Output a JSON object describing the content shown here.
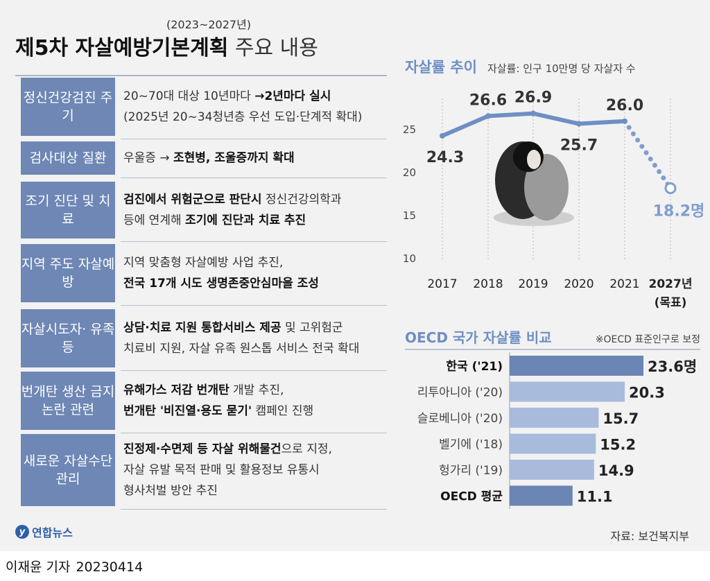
{
  "header": {
    "subtitle": "(2023~2027년)",
    "title_bold": "제5차 자살예방기본계획",
    "title_light": "주요 내용"
  },
  "plan_items": [
    {
      "label": "정신건강검진 주기",
      "desc": [
        [
          {
            "t": "20~70대 대상 10년마다 ",
            "b": false
          },
          {
            "t": "→2년마다 실시",
            "b": true
          }
        ],
        [
          {
            "t": "(2025년 20~34청년층 우선 도입·단계적 확대)",
            "b": false
          }
        ]
      ]
    },
    {
      "label": "검사대상 질환",
      "desc": [
        [
          {
            "t": "우울증 → ",
            "b": false
          },
          {
            "t": "조현병, 조울증까지 확대",
            "b": true
          }
        ]
      ]
    },
    {
      "label": "조기 진단 및 치료",
      "desc": [
        [
          {
            "t": "검진에서 위험군으로 판단시",
            "b": true
          },
          {
            "t": " 정신건강의학과",
            "b": false
          }
        ],
        [
          {
            "t": "등에 연계해 ",
            "b": false
          },
          {
            "t": "조기에 진단과 치료 추진",
            "b": true
          }
        ]
      ]
    },
    {
      "label": "지역 주도 자살예방",
      "desc": [
        [
          {
            "t": "지역 맞춤형 자살예방 사업 추진,",
            "b": false
          }
        ],
        [
          {
            "t": "전국 17개 시도 생명존중안심마을 조성",
            "b": true
          }
        ]
      ]
    },
    {
      "label": "자살시도자· 유족 등",
      "desc": [
        [
          {
            "t": "상담·치료 지원 통합서비스 제공",
            "b": true
          },
          {
            "t": " 및 고위험군",
            "b": false
          }
        ],
        [
          {
            "t": "치료비 지원, 자살 유족 원스톱 서비스 전국 확대",
            "b": false
          }
        ]
      ]
    },
    {
      "label": "번개탄 생산 금지 논란 관련",
      "desc": [
        [
          {
            "t": "유해가스 저감 번개탄",
            "b": true
          },
          {
            "t": " 개발 추진,",
            "b": false
          }
        ],
        [
          {
            "t": "번개탄 '비진열·용도 묻기'",
            "b": true
          },
          {
            "t": " 캠페인 진행",
            "b": false
          }
        ]
      ]
    },
    {
      "label": "새로운 자살수단 관리",
      "desc": [
        [
          {
            "t": "진정제·수면제 등 자살 위해물건",
            "b": true
          },
          {
            "t": "으로 지정,",
            "b": false
          }
        ],
        [
          {
            "t": "자살 유발 목적 판매 및 활용정보 유통시",
            "b": false
          }
        ],
        [
          {
            "t": "형사처벌 방안 추진",
            "b": false
          }
        ]
      ]
    }
  ],
  "chart_data": [
    {
      "type": "line",
      "title": "자살률 추이",
      "subtitle": "자살률: 인구 10만명 당 자살자 수",
      "x": [
        "2017",
        "2018",
        "2019",
        "2020",
        "2021",
        "2027년"
      ],
      "x_note": "(목표)",
      "values": [
        24.3,
        26.6,
        26.9,
        25.7,
        26.0,
        18.2
      ],
      "value_labels": [
        "24.3",
        "26.6",
        "26.9",
        "25.7",
        "26.0",
        "18.2명"
      ],
      "projected_from_index": 4,
      "yticks": [
        10,
        15,
        20,
        25
      ],
      "ylim": [
        8,
        28
      ],
      "grid": "vertical dotted",
      "color": "#6e8fc4",
      "target_color": "#7f9ed0"
    },
    {
      "type": "bar",
      "orientation": "horizontal",
      "title": "OECD 국가 자살률 비교",
      "note": "※OECD 표준인구로 보정",
      "categories": [
        "한국 ('21)",
        "리투아니아 ('20)",
        "슬로베니아 ('20)",
        "벨기에 ('18)",
        "헝가리 ('19)",
        "OECD 평균"
      ],
      "bold": [
        true,
        false,
        false,
        false,
        false,
        true
      ],
      "values": [
        23.6,
        20.3,
        15.7,
        15.2,
        14.9,
        11.1
      ],
      "value_labels": [
        "23.6명",
        "20.3",
        "15.7",
        "15.2",
        "14.9",
        "11.1"
      ],
      "highlight_color": "#6b85b5",
      "base_color": "#a9bbdc"
    }
  ],
  "footer": {
    "logo": "연합뉴스",
    "logo_mark": "y",
    "source": "자료: 보건복지부",
    "reporter": "이재윤 기자",
    "date": "20230414"
  }
}
